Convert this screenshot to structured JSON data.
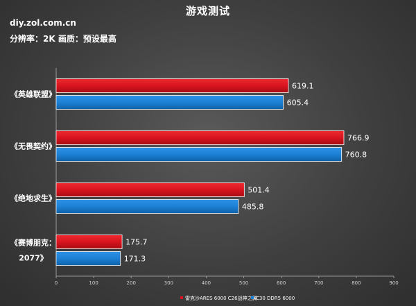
{
  "header": {
    "source": "diy.zol.com.cn",
    "settings": "分辨率：2K  画质：预设最高"
  },
  "colors": {
    "series1": "#d8141e",
    "series2": "#1c80d4"
  },
  "chart_data": {
    "type": "bar",
    "orientation": "horizontal",
    "title": "游戏测试",
    "categories": [
      [
        "《英雄联盟》"
      ],
      [
        "《无畏契约》"
      ],
      [
        "《绝地求生》"
      ],
      [
        "《赛博朋克：",
        "2077》"
      ]
    ],
    "series": [
      {
        "name": "雷克沙ARES 6000 C26战神之翼",
        "values": [
          619.1,
          766.9,
          501.4,
          175.7
        ]
      },
      {
        "name": "C30 DDR5 6000",
        "values": [
          605.4,
          760.8,
          485.8,
          171.3
        ]
      }
    ],
    "xlim": [
      0,
      900
    ],
    "xticks": [
      0,
      100,
      200,
      300,
      400,
      500,
      600,
      700,
      800,
      900
    ],
    "legend_position": "bottom",
    "grid": false
  }
}
